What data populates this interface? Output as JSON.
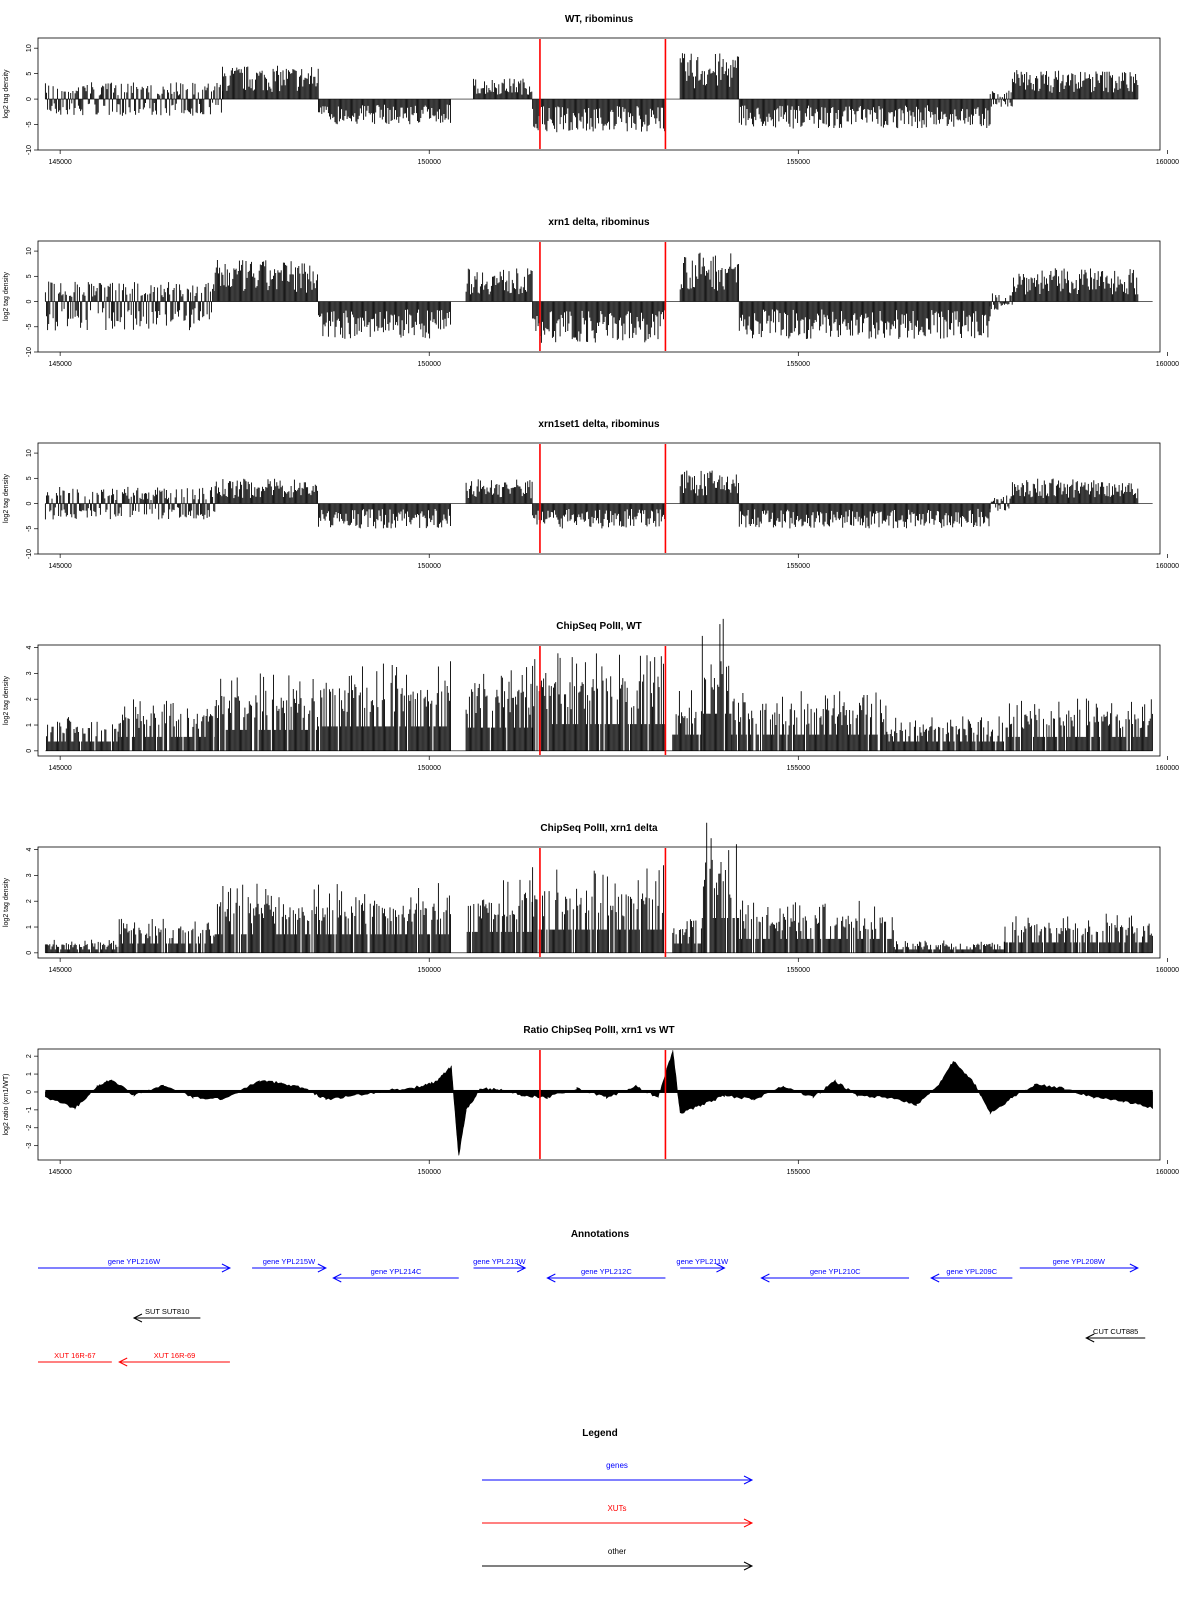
{
  "chart_data": [
    {
      "type": "bar",
      "title": "WT, ribominus",
      "xlabel": "",
      "ylabel": "log2 tag density",
      "xlim": [
        144700,
        159900
      ],
      "ylim": [
        -10,
        12
      ],
      "yticks": [
        10,
        5,
        0,
        -5,
        -10
      ],
      "yticklabels": [
        "10",
        "5",
        "0",
        "-5",
        "-10"
      ],
      "xticks": [
        145000,
        150000,
        155000,
        160000
      ],
      "xticklabels": [
        "145000",
        "150000",
        "155000",
        "160000"
      ],
      "grid": false,
      "signal_start": 144800,
      "signal_end": 159600,
      "red_lines": [
        151500,
        153200
      ],
      "segments": [
        {
          "start": 144800,
          "end": 147200,
          "side": "mixed",
          "pos": 2,
          "neg": -2
        },
        {
          "start": 147200,
          "end": 148500,
          "side": "pos",
          "pos": 4
        },
        {
          "start": 148500,
          "end": 150300,
          "side": "neg",
          "neg": -3
        },
        {
          "start": 150600,
          "end": 151400,
          "side": "pos",
          "pos": 2.5
        },
        {
          "start": 151400,
          "end": 153200,
          "side": "neg",
          "neg": -4
        },
        {
          "start": 153400,
          "end": 154200,
          "side": "pos",
          "pos": 5.5
        },
        {
          "start": 154200,
          "end": 157600,
          "side": "neg",
          "neg": -3.5
        },
        {
          "start": 157600,
          "end": 157900,
          "side": "mixed",
          "pos": 1,
          "neg": -1
        },
        {
          "start": 157900,
          "end": 159600,
          "side": "pos",
          "pos": 3.5
        }
      ]
    },
    {
      "type": "bar",
      "title": "xrn1 delta, ribominus",
      "xlabel": "",
      "ylabel": "log2 tag density",
      "xlim": [
        144700,
        159900
      ],
      "ylim": [
        -10,
        12
      ],
      "yticks": [
        10,
        5,
        0,
        -5,
        -10
      ],
      "yticklabels": [
        "10",
        "5",
        "0",
        "-5",
        "-10"
      ],
      "xticks": [
        145000,
        150000,
        155000,
        160000
      ],
      "xticklabels": [
        "145000",
        "150000",
        "155000",
        "160000"
      ],
      "grid": false,
      "signal_start": 144800,
      "signal_end": 159800,
      "red_lines": [
        151500,
        153200
      ],
      "segments": [
        {
          "start": 144800,
          "end": 147100,
          "side": "mixed",
          "pos": 2.5,
          "neg": -3.5
        },
        {
          "start": 147100,
          "end": 148500,
          "side": "pos",
          "pos": 5
        },
        {
          "start": 148500,
          "end": 150300,
          "side": "neg",
          "neg": -4.5
        },
        {
          "start": 150500,
          "end": 151400,
          "side": "pos",
          "pos": 4
        },
        {
          "start": 151400,
          "end": 153200,
          "side": "neg",
          "neg": -5
        },
        {
          "start": 153400,
          "end": 154200,
          "side": "pos",
          "pos": 6
        },
        {
          "start": 154200,
          "end": 157600,
          "side": "neg",
          "neg": -4.5
        },
        {
          "start": 157600,
          "end": 157900,
          "side": "mixed",
          "pos": 1,
          "neg": -1
        },
        {
          "start": 157900,
          "end": 159600,
          "side": "pos",
          "pos": 4
        }
      ]
    },
    {
      "type": "bar",
      "title": "xrn1set1 delta, ribominus",
      "xlabel": "",
      "ylabel": "log2 tag density",
      "xlim": [
        144700,
        159900
      ],
      "ylim": [
        -10,
        12
      ],
      "yticks": [
        10,
        5,
        0,
        -5,
        -10
      ],
      "yticklabels": [
        "10",
        "5",
        "0",
        "-5",
        "-10"
      ],
      "xticks": [
        145000,
        150000,
        155000,
        160000
      ],
      "xticklabels": [
        "145000",
        "150000",
        "155000",
        "160000"
      ],
      "grid": false,
      "signal_start": 144800,
      "signal_end": 159800,
      "red_lines": [
        151500,
        153200
      ],
      "segments": [
        {
          "start": 144800,
          "end": 147100,
          "side": "mixed",
          "pos": 2,
          "neg": -2
        },
        {
          "start": 147100,
          "end": 148500,
          "side": "pos",
          "pos": 3
        },
        {
          "start": 148500,
          "end": 150300,
          "side": "neg",
          "neg": -3
        },
        {
          "start": 150500,
          "end": 151400,
          "side": "pos",
          "pos": 3
        },
        {
          "start": 151400,
          "end": 153200,
          "side": "neg",
          "neg": -3
        },
        {
          "start": 153400,
          "end": 154200,
          "side": "pos",
          "pos": 4
        },
        {
          "start": 154200,
          "end": 157600,
          "side": "neg",
          "neg": -3
        },
        {
          "start": 157600,
          "end": 157900,
          "side": "mixed",
          "pos": 1,
          "neg": -1
        },
        {
          "start": 157900,
          "end": 159600,
          "side": "pos",
          "pos": 3
        }
      ]
    },
    {
      "type": "bar",
      "title": "ChipSeq PolII, WT",
      "xlabel": "",
      "ylabel": "log2 tag density",
      "xlim": [
        144700,
        159900
      ],
      "ylim": [
        -0.2,
        4.1
      ],
      "yticks": [
        0,
        1,
        2,
        3,
        4
      ],
      "yticklabels": [
        "0",
        "1",
        "2",
        "3",
        "4"
      ],
      "xticks": [
        145000,
        150000,
        155000,
        160000
      ],
      "xticklabels": [
        "145000",
        "150000",
        "155000",
        "160000"
      ],
      "grid": false,
      "signal_start": 144800,
      "signal_end": 159800,
      "red_lines": [
        151500,
        153200
      ],
      "segments": [
        {
          "start": 144800,
          "end": 145800,
          "side": "pos",
          "pos": 0.8
        },
        {
          "start": 145800,
          "end": 147100,
          "side": "pos",
          "pos": 1.2
        },
        {
          "start": 147100,
          "end": 148500,
          "side": "pos",
          "pos": 1.8
        },
        {
          "start": 148500,
          "end": 150300,
          "side": "pos",
          "pos": 2.1
        },
        {
          "start": 150500,
          "end": 151400,
          "side": "pos",
          "pos": 2
        },
        {
          "start": 151400,
          "end": 153200,
          "side": "pos",
          "pos": 2.3
        },
        {
          "start": 153300,
          "end": 153700,
          "side": "pos",
          "pos": 1.4
        },
        {
          "start": 153700,
          "end": 154100,
          "side": "pos",
          "pos": 3.2
        },
        {
          "start": 154100,
          "end": 156200,
          "side": "pos",
          "pos": 1.4
        },
        {
          "start": 156200,
          "end": 157800,
          "side": "pos",
          "pos": 0.8
        },
        {
          "start": 157800,
          "end": 159800,
          "side": "pos",
          "pos": 1.2
        }
      ]
    },
    {
      "type": "bar",
      "title": "ChipSeq PolII, xrn1 delta",
      "xlabel": "",
      "ylabel": "log2 tag density",
      "xlim": [
        144700,
        159900
      ],
      "ylim": [
        -0.2,
        4.1
      ],
      "yticks": [
        0,
        1,
        2,
        3,
        4
      ],
      "yticklabels": [
        "0",
        "1",
        "2",
        "3",
        "4"
      ],
      "xticks": [
        145000,
        150000,
        155000,
        160000
      ],
      "xticklabels": [
        "145000",
        "150000",
        "155000",
        "160000"
      ],
      "grid": false,
      "signal_start": 144800,
      "signal_end": 159800,
      "red_lines": [
        151500,
        153200
      ],
      "segments": [
        {
          "start": 144800,
          "end": 145800,
          "side": "pos",
          "pos": 0.3
        },
        {
          "start": 145800,
          "end": 147100,
          "side": "pos",
          "pos": 0.8
        },
        {
          "start": 147100,
          "end": 148500,
          "side": "pos",
          "pos": 1.6
        },
        {
          "start": 148500,
          "end": 150300,
          "side": "pos",
          "pos": 1.6
        },
        {
          "start": 150500,
          "end": 151400,
          "side": "pos",
          "pos": 1.8
        },
        {
          "start": 151400,
          "end": 153200,
          "side": "pos",
          "pos": 2
        },
        {
          "start": 153300,
          "end": 153700,
          "side": "pos",
          "pos": 0.8
        },
        {
          "start": 153700,
          "end": 154200,
          "side": "pos",
          "pos": 3
        },
        {
          "start": 154200,
          "end": 156300,
          "side": "pos",
          "pos": 1.2
        },
        {
          "start": 156300,
          "end": 157800,
          "side": "pos",
          "pos": 0.3
        },
        {
          "start": 157800,
          "end": 159800,
          "side": "pos",
          "pos": 0.9
        }
      ]
    },
    {
      "type": "area",
      "title": "Ratio ChipSeq PolII, xrn1 vs WT",
      "xlabel": "",
      "ylabel": "log2 ratio (xrn1/WT)",
      "xlim": [
        144700,
        159900
      ],
      "ylim": [
        -3.8,
        2.4
      ],
      "yticks": [
        2,
        1,
        0,
        -1,
        -2,
        -3
      ],
      "yticklabels": [
        "2",
        "1",
        "0",
        "-1",
        "-2",
        "-3"
      ],
      "xticks": [
        145000,
        150000,
        155000,
        160000
      ],
      "xticklabels": [
        "145000",
        "150000",
        "155000",
        "160000"
      ],
      "grid": false,
      "signal_start": 144800,
      "signal_end": 159800,
      "red_lines": [
        151500,
        153200
      ],
      "x": [
        144800,
        145200,
        145500,
        145700,
        146000,
        146400,
        146800,
        147200,
        147700,
        148000,
        148300,
        148600,
        149000,
        149500,
        149900,
        150100,
        150300,
        150400,
        150500,
        150700,
        151000,
        151300,
        151600,
        152000,
        152400,
        152800,
        153100,
        153300,
        153400,
        153700,
        154000,
        154400,
        154800,
        155200,
        155500,
        155800,
        156200,
        156600,
        156900,
        157100,
        157400,
        157600,
        157900,
        158200,
        158600,
        159000,
        159400,
        159800
      ],
      "y": [
        -0.3,
        -0.9,
        0.3,
        0.7,
        -0.2,
        0.4,
        -0.3,
        -0.4,
        0.6,
        0.5,
        0.2,
        -0.4,
        -0.2,
        0.1,
        0.3,
        0.6,
        1.4,
        -3.6,
        -1.0,
        0.2,
        0.1,
        -0.2,
        -0.3,
        0.2,
        -0.3,
        0.3,
        -0.3,
        2.3,
        -1.2,
        -0.7,
        -0.2,
        -0.4,
        0.3,
        -0.3,
        0.6,
        -0.2,
        -0.3,
        -0.7,
        0.4,
        1.7,
        0.4,
        -1.2,
        -0.3,
        0.4,
        0.2,
        -0.3,
        -0.5,
        -0.9
      ]
    }
  ],
  "annotations": {
    "title": "Annotations",
    "xlim": [
      144700,
      159900
    ],
    "rows": [
      [
        {
          "label": "gene YPL216W",
          "start": 144700,
          "end": 147300,
          "dir": "right",
          "color": "#0000ff"
        },
        {
          "label": "gene YPL215W",
          "start": 147600,
          "end": 148600,
          "dir": "right",
          "color": "#0000ff"
        },
        {
          "label": "gene YPL213W",
          "start": 150600,
          "end": 151300,
          "dir": "right",
          "color": "#0000ff"
        },
        {
          "label": "gene YPL211W",
          "start": 153400,
          "end": 154000,
          "dir": "right",
          "color": "#0000ff"
        },
        {
          "label": "gene YPL208W",
          "start": 158000,
          "end": 159600,
          "dir": "right",
          "color": "#0000ff"
        }
      ],
      [
        {
          "label": "gene YPL214C",
          "start": 148700,
          "end": 150400,
          "dir": "left",
          "color": "#0000ff"
        },
        {
          "label": "gene YPL212C",
          "start": 151600,
          "end": 153200,
          "dir": "left",
          "color": "#0000ff"
        },
        {
          "label": "gene YPL210C",
          "start": 154500,
          "end": 156500,
          "dir": "left",
          "color": "#0000ff"
        },
        {
          "label": "gene YPL209C",
          "start": 156800,
          "end": 157900,
          "dir": "left",
          "color": "#0000ff"
        }
      ],
      [
        {
          "label": "SUT SUT810",
          "start": 146000,
          "end": 146900,
          "dir": "left",
          "color": "#000000"
        }
      ],
      [
        {
          "label": "CUT CUT885",
          "start": 158900,
          "end": 159700,
          "dir": "left",
          "color": "#000000"
        }
      ],
      [
        {
          "label": "XUT 16R-67",
          "start": 144700,
          "end": 145700,
          "dir": "none",
          "color": "#ff0000"
        },
        {
          "label": "XUT 16R-69",
          "start": 145800,
          "end": 147300,
          "dir": "left",
          "color": "#ff0000"
        }
      ]
    ]
  },
  "legend": {
    "title": "Legend",
    "items": [
      {
        "label": "genes",
        "color": "#0000ff"
      },
      {
        "label": "XUTs",
        "color": "#ff0000"
      },
      {
        "label": "other",
        "color": "#000000"
      }
    ]
  }
}
